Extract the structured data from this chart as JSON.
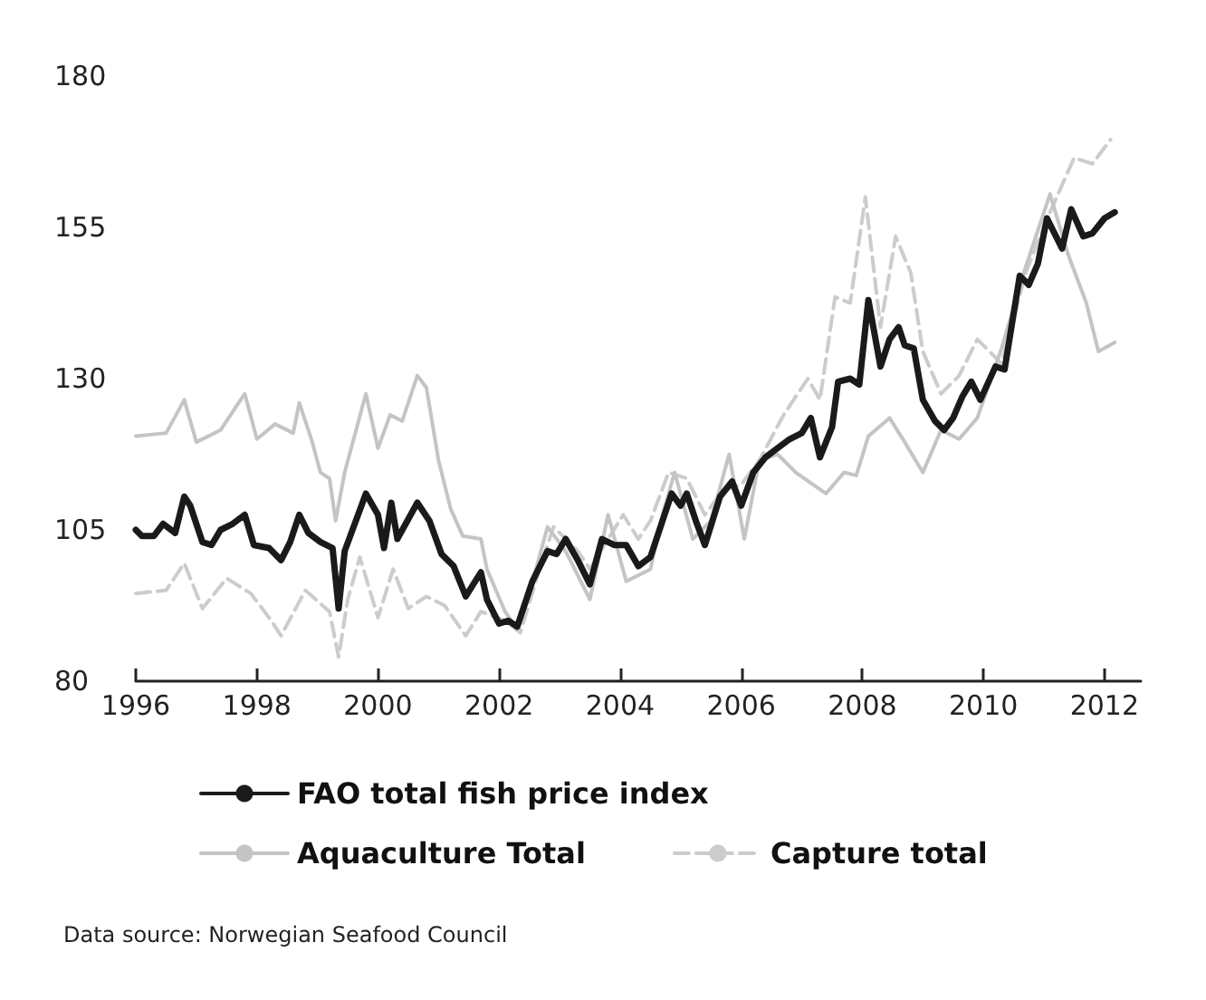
{
  "chart_data": {
    "type": "line",
    "xlim": [
      1996,
      2012.6
    ],
    "xticks": [
      1996,
      1998,
      2000,
      2002,
      2004,
      2006,
      2008,
      2010,
      2012
    ],
    "ylim": [
      80,
      180
    ],
    "yticks": [
      80,
      105,
      130,
      155,
      180
    ],
    "grid": false,
    "legend": "bottom",
    "marker": "none",
    "annotations": [
      "Data source: Norwegian Seafood Council"
    ],
    "series": [
      {
        "name": "FAO total fish price index",
        "color": "#1a1a1a",
        "line_style": "solid",
        "x": [
          1996.0,
          1996.1,
          1996.3,
          1996.45,
          1996.65,
          1996.8,
          1996.9,
          1997.1,
          1997.25,
          1997.4,
          1997.6,
          1997.8,
          1997.95,
          1998.2,
          1998.4,
          1998.55,
          1998.7,
          1998.85,
          1999.05,
          1999.25,
          1999.35,
          1999.45,
          1999.8,
          2000.0,
          2000.1,
          2000.22,
          2000.32,
          2000.65,
          2000.85,
          2001.05,
          2001.25,
          2001.45,
          2001.7,
          2001.8,
          2002.0,
          2002.15,
          2002.3,
          2002.55,
          2002.8,
          2002.95,
          2003.1,
          2003.3,
          2003.5,
          2003.7,
          2003.9,
          2004.1,
          2004.3,
          2004.5,
          2004.7,
          2004.85,
          2005.0,
          2005.1,
          2005.25,
          2005.4,
          2005.65,
          2005.85,
          2006.0,
          2006.2,
          2006.4,
          2006.6,
          2006.8,
          2007.0,
          2007.15,
          2007.3,
          2007.5,
          2007.6,
          2007.8,
          2007.95,
          2008.1,
          2008.3,
          2008.45,
          2008.6,
          2008.7,
          2008.85,
          2009.0,
          2009.2,
          2009.35,
          2009.5,
          2009.65,
          2009.8,
          2009.95,
          2010.2,
          2010.35,
          2010.6,
          2010.75,
          2010.9,
          2011.05,
          2011.3,
          2011.45,
          2011.65,
          2011.8,
          2012.0,
          2012.17
        ],
        "values": [
          105,
          104,
          104,
          106,
          104.5,
          110.5,
          109,
          103,
          102.5,
          105,
          106,
          107.5,
          102.5,
          102,
          100,
          103,
          107.5,
          104.5,
          103,
          102,
          92,
          101.5,
          111,
          107.5,
          102,
          109.5,
          103.5,
          109.5,
          106.5,
          101,
          99,
          94,
          98,
          93.5,
          89.5,
          90,
          89,
          96.5,
          101.5,
          101,
          103.5,
          100,
          96,
          103.5,
          102.5,
          102.5,
          99,
          100.5,
          106.5,
          111,
          109,
          111,
          106.5,
          102.5,
          110.5,
          113,
          109,
          114.5,
          117,
          118.5,
          120,
          121,
          123.5,
          117,
          122,
          129.5,
          130,
          129,
          143,
          132,
          136.5,
          138.5,
          135.5,
          135,
          126.5,
          123,
          121.5,
          123.5,
          127,
          129.5,
          126.5,
          132,
          131.5,
          147,
          145.5,
          149,
          156.5,
          151.5,
          158,
          153.5,
          154,
          156.5,
          157.5
        ]
      },
      {
        "name": "Aquaculture Total",
        "color": "#c4c4c4",
        "line_style": "solid",
        "x": [
          1996.0,
          1996.5,
          1996.8,
          1997.0,
          1997.4,
          1997.8,
          1998.0,
          1998.3,
          1998.6,
          1998.7,
          1998.9,
          1999.05,
          1999.2,
          1999.3,
          1999.45,
          1999.8,
          2000.0,
          2000.2,
          2000.4,
          2000.65,
          2000.8,
          2001.0,
          2001.2,
          2001.4,
          2001.7,
          2001.8,
          2002.1,
          2002.3,
          2002.5,
          2002.8,
          2003.1,
          2003.3,
          2003.5,
          2003.8,
          2004.1,
          2004.5,
          2004.7,
          2004.9,
          2005.2,
          2005.5,
          2005.8,
          2006.05,
          2006.3,
          2006.6,
          2006.9,
          2007.4,
          2007.7,
          2007.9,
          2008.1,
          2008.45,
          2008.7,
          2009.0,
          2009.3,
          2009.6,
          2009.9,
          2010.3,
          2010.7,
          2011.1,
          2011.4,
          2011.7,
          2011.9,
          2012.17
        ],
        "values": [
          120.5,
          121,
          126.5,
          119.5,
          121.5,
          127.5,
          120,
          122.5,
          121,
          126,
          120,
          114.5,
          113.5,
          106.5,
          114.5,
          127.5,
          118.5,
          124,
          123,
          130.5,
          128.5,
          116.5,
          108.5,
          104,
          103.5,
          98.5,
          91.5,
          88.5,
          94.5,
          105.5,
          101.5,
          97.5,
          93.5,
          107.5,
          96.5,
          98.5,
          107.5,
          114.5,
          103.5,
          106.5,
          117.5,
          103.5,
          116.5,
          117.5,
          114.5,
          111,
          114.5,
          114,
          120.5,
          123.5,
          119.5,
          114.5,
          121.5,
          120,
          123.5,
          135,
          148.5,
          160.5,
          150.5,
          142.5,
          134.5,
          136
        ]
      },
      {
        "name": "Capture total",
        "color": "#cccccc",
        "line_style": "dashed",
        "x": [
          1996.0,
          1996.5,
          1996.8,
          1997.1,
          1997.5,
          1997.9,
          1998.2,
          1998.4,
          1998.8,
          1999.2,
          1999.35,
          1999.5,
          1999.7,
          2000.0,
          2000.25,
          2000.5,
          2000.8,
          2001.1,
          2001.45,
          2001.7,
          2002.1,
          2002.35,
          2002.7,
          2002.9,
          2003.3,
          2003.5,
          2003.8,
          2004.05,
          2004.3,
          2004.5,
          2004.8,
          2005.1,
          2005.4,
          2005.7,
          2006.0,
          2006.3,
          2006.7,
          2007.1,
          2007.3,
          2007.55,
          2007.8,
          2008.05,
          2008.3,
          2008.55,
          2008.8,
          2009.0,
          2009.3,
          2009.6,
          2009.9,
          2010.3,
          2010.7,
          2011.1,
          2011.5,
          2011.8,
          2012.1
        ],
        "values": [
          94.5,
          95,
          99.5,
          92,
          97,
          94.5,
          90.5,
          87.5,
          95,
          91.5,
          84,
          93.5,
          100.5,
          90.5,
          98.5,
          92,
          94,
          92.5,
          87.5,
          91.5,
          90,
          88,
          99.5,
          105.5,
          101.5,
          98.5,
          103.5,
          107.5,
          103.5,
          106.5,
          114.5,
          113.5,
          107.5,
          111.5,
          112.5,
          116.5,
          124,
          130,
          126.5,
          143.5,
          142.5,
          160,
          138.5,
          153.5,
          147.5,
          134.5,
          127.5,
          130.5,
          136.5,
          132.5,
          147.5,
          157.5,
          166.5,
          165.5,
          169.5
        ]
      }
    ]
  }
}
